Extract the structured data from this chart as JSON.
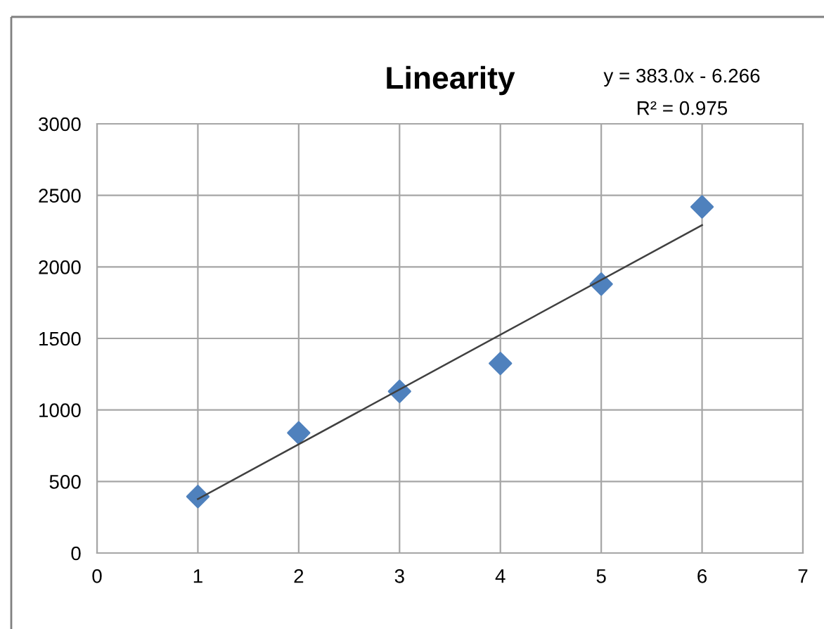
{
  "chart_data": {
    "type": "scatter",
    "title": "Linearity",
    "annotations": [
      "y = 383.0x - 6.266",
      "R² = 0.975"
    ],
    "series": [
      {
        "color": "#4f81bd",
        "marker": "diamond",
        "x": [
          1,
          2,
          3,
          4,
          5,
          6
        ],
        "values": [
          395,
          840,
          1130,
          1325,
          1880,
          2420
        ]
      },
      {
        "type": "line",
        "color": "#404040",
        "marker": "none",
        "line_style": "solid",
        "x": [
          1,
          6
        ],
        "values": [
          377,
          2292
        ]
      }
    ],
    "xlim": [
      0,
      7
    ],
    "xticks": [
      0,
      1,
      2,
      3,
      4,
      5,
      6,
      7
    ],
    "ylim": [
      0,
      3000
    ],
    "yticks": [
      0,
      500,
      1000,
      1500,
      2000,
      2500,
      3000
    ],
    "grid": true
  }
}
